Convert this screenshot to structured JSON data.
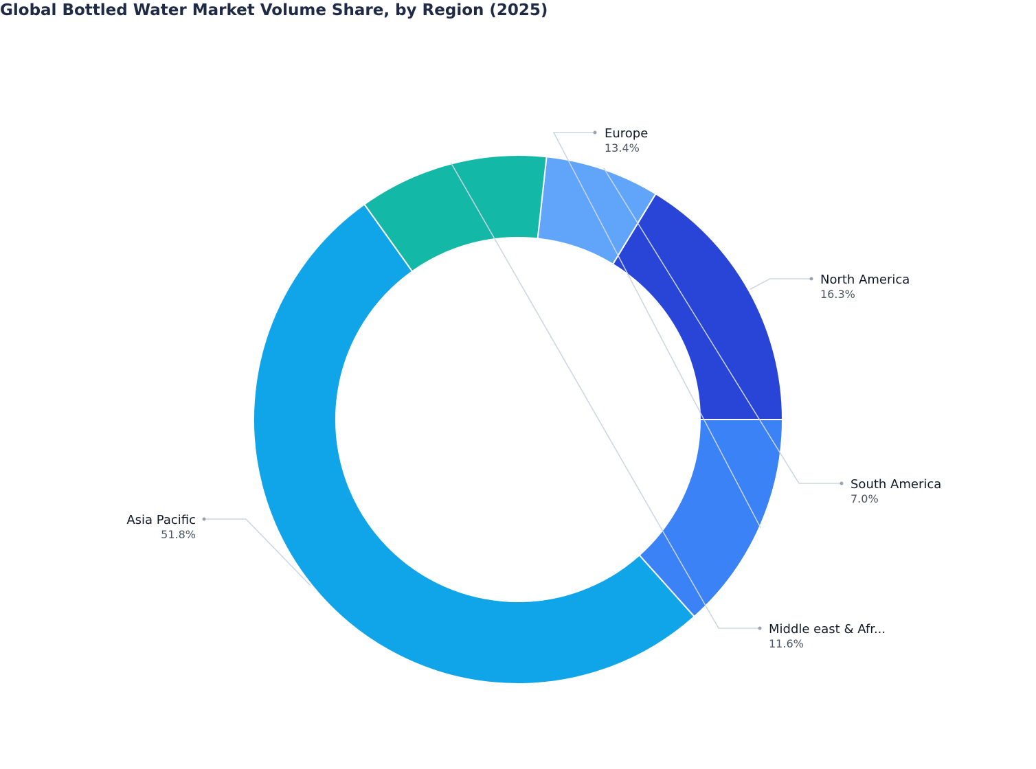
{
  "chart_data": {
    "type": "pie",
    "variant": "donut",
    "title": "Global Bottled Water Market Volume Share, by Region (2025)",
    "unit": "%",
    "slices": [
      {
        "label": "North America",
        "value": 16.3,
        "value_label": "16.3%",
        "color": "#2845d8"
      },
      {
        "label": "South America",
        "value": 7.0,
        "value_label": "7.0%",
        "color": "#60a5fa"
      },
      {
        "label": "Middle east & Afr...",
        "value": 11.6,
        "value_label": "11.6%",
        "color": "#14b8a6"
      },
      {
        "label": "Asia Pacific",
        "value": 51.8,
        "value_label": "51.8%",
        "color": "#10a5e8"
      },
      {
        "label": "Europe",
        "value": 13.4,
        "value_label": "13.4%",
        "color": "#3b82f6"
      }
    ],
    "legend": "none",
    "labels": "outside with leader lines"
  }
}
